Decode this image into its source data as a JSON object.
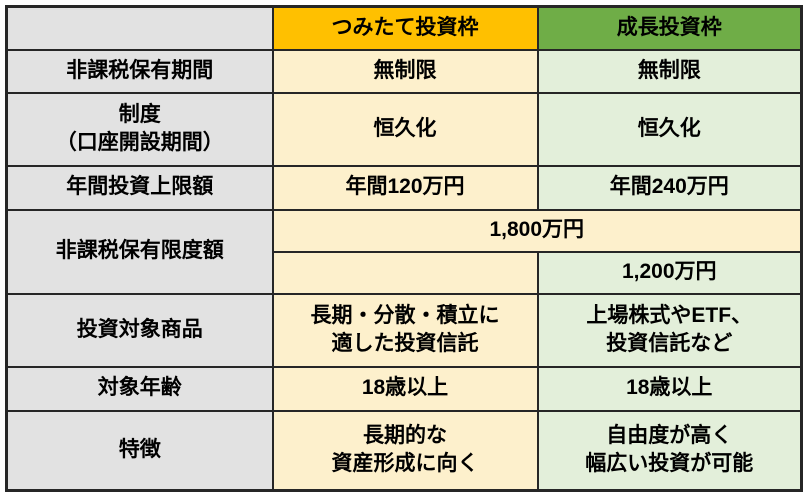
{
  "colors": {
    "header-orange": "#FFC000",
    "header-green": "#6FAD47",
    "cell-yellow": "#FDF0CC",
    "cell-green": "#E3EFDA",
    "label-gray": "#E2E2E2",
    "border": "#262626",
    "text": "#000000"
  },
  "table": {
    "corner_label": "",
    "column_headers": {
      "tsumitate": "つみたて投資枠",
      "growth": "成長投資枠"
    },
    "rows": [
      {
        "label": "非課税保有期間",
        "tsumitate": "無制限",
        "growth": "無制限"
      },
      {
        "label": "制度\n（口座開設期間）",
        "tsumitate": "恒久化",
        "growth": "恒久化"
      },
      {
        "label": "年間投資上限額",
        "tsumitate": "年間120万円",
        "growth": "年間240万円"
      },
      {
        "label": "非課税保有限度額",
        "combined_total": "1,800万円",
        "growth_sub_limit": "1,200万円"
      },
      {
        "label": "投資対象商品",
        "tsumitate": "長期・分散・積立に\n適した投資信託",
        "growth": "上場株式やETF、\n投資信託など"
      },
      {
        "label": "対象年齢",
        "tsumitate": "18歳以上",
        "growth": "18歳以上"
      },
      {
        "label": "特徴",
        "tsumitate": "長期的な\n資産形成に向く",
        "growth": "自由度が高く\n幅広い投資が可能"
      }
    ]
  }
}
